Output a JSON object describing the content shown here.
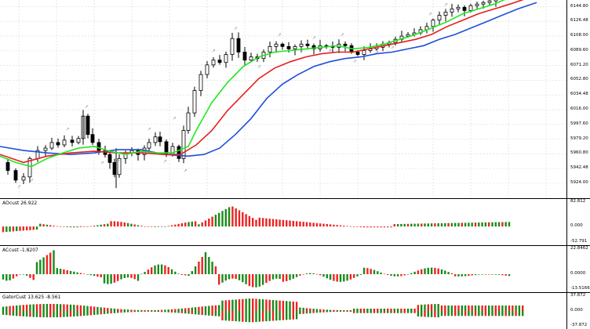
{
  "colors": {
    "bull_bar": "#1a8a1a",
    "bear_bar": "#ee2222",
    "jaw": "#1f4fd6",
    "teeth": "#e81c1c",
    "lips": "#1fe81f",
    "candle": "#000000",
    "grid": "#d8d8d8",
    "fractal": "#9a9a9a"
  },
  "price_pane": {
    "scale_labels": [
      "6144.80",
      "6126.48",
      "6108.00",
      "6089.60",
      "6071.20",
      "6052.80",
      "6034.48",
      "6016.00",
      "5997.60",
      "5979.20",
      "5960.80",
      "5942.48",
      "5924.00"
    ],
    "scale_values": [
      6144.8,
      6126.48,
      6108.0,
      6089.6,
      6071.2,
      6052.8,
      6034.48,
      6016.0,
      5997.6,
      5979.2,
      5960.8,
      5942.48,
      5924.0
    ]
  },
  "indicators": [
    {
      "id": "ao",
      "label": "AOcust 26.922",
      "scale_labels": [
        "82.812",
        "0.000",
        "-52.791"
      ],
      "scale_values": [
        82.812,
        0,
        -52.791
      ]
    },
    {
      "id": "ac",
      "label": "ACcust -1.8207",
      "scale_labels": [
        "22.8462",
        "0.0000",
        "-13.5166"
      ],
      "scale_values": [
        22.8462,
        0,
        -13.5166
      ]
    },
    {
      "id": "gator",
      "label": "GatorCust 13.625 -8.561",
      "scale_labels": [
        "37.872",
        "0.000",
        "-37.872"
      ],
      "scale_values": [
        37.872,
        0,
        -37.872
      ]
    }
  ]
}
